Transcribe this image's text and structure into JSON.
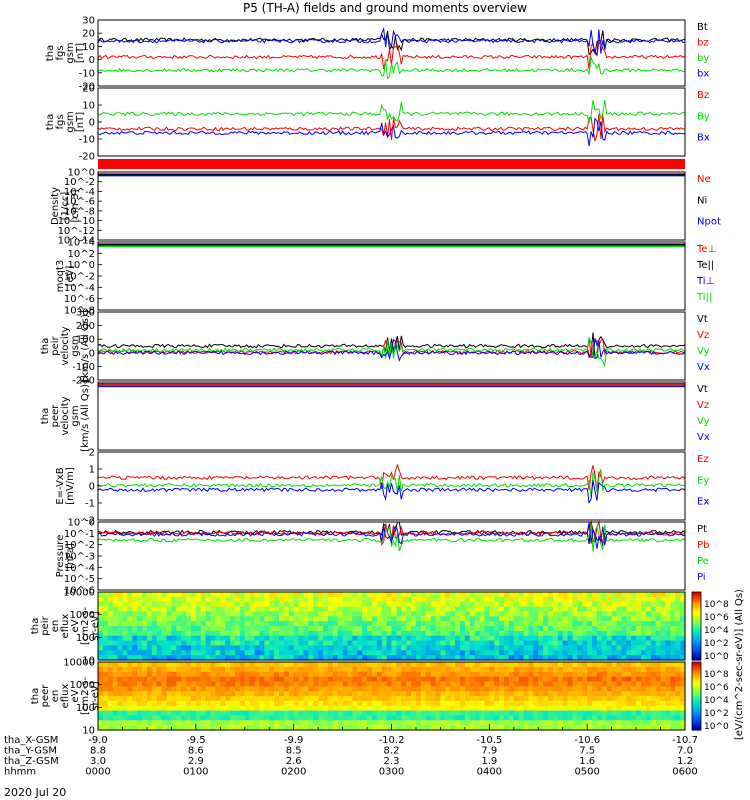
{
  "title": "P5 (TH-A) fields and ground moments overview",
  "colors": {
    "black": "#000000",
    "red": "#ff0000",
    "green": "#00e000",
    "blue": "#0000ff",
    "bar": "#ff0000"
  },
  "colorbar_label": "[eV/(cm^2-sec-sr-eV)] (All Qs)",
  "chart_data": [
    {
      "type": "line",
      "id": "fgs",
      "ylabel": [
        "tha",
        "fgs",
        "gsm",
        "[nT]"
      ],
      "ylim": [
        -20,
        30
      ],
      "ticks": [
        "30",
        "20",
        "10",
        "0",
        "-10",
        "-20"
      ],
      "series": [
        {
          "name": "Bt",
          "color": "black",
          "level": 15
        },
        {
          "name": "bz",
          "color": "red",
          "level": 2
        },
        {
          "name": "by",
          "color": "green",
          "level": -8
        },
        {
          "name": "bx",
          "color": "blue",
          "level": 14
        }
      ]
    },
    {
      "type": "line",
      "id": "fgs_dsl",
      "ylabel": [
        "tha",
        "fgs",
        "gsm",
        "[nT]"
      ],
      "ylim": [
        -25,
        25
      ],
      "ticks": [
        "20",
        "10",
        "0",
        "-10",
        "-20"
      ],
      "series": [
        {
          "name": "Bz",
          "color": "red",
          "level": -5
        },
        {
          "name": "By",
          "color": "green",
          "level": 6
        },
        {
          "name": "Bx",
          "color": "blue",
          "level": -8
        }
      ]
    },
    {
      "type": "line",
      "id": "density",
      "ylabel": [
        "Density",
        "[1/cc]",
        "[cm-3]"
      ],
      "ylim": [
        -14,
        2
      ],
      "ticks": [
        "10^0",
        "10^-2",
        "10^-4",
        "10^-6",
        "10^-8",
        "10^-10",
        "10^-12",
        "10^-14"
      ],
      "series": [
        {
          "name": "Ne",
          "color": "red"
        },
        {
          "name": "Ni",
          "color": "black"
        },
        {
          "name": "Npot",
          "color": "blue"
        }
      ]
    },
    {
      "type": "line",
      "id": "temp",
      "ylabel": [
        "moqt3",
        "[eV]"
      ],
      "ylim": [
        -8,
        4
      ],
      "ticks": [
        "10^4",
        "10^2",
        "10^0",
        "10^-2",
        "10^-4",
        "10^-6",
        "10^-8"
      ],
      "series": [
        {
          "name": "Te⊥",
          "color": "red"
        },
        {
          "name": "Te||",
          "color": "black"
        },
        {
          "name": "Ti⊥",
          "color": "blue"
        },
        {
          "name": "Ti||",
          "color": "green"
        }
      ]
    },
    {
      "type": "line",
      "id": "peir_vel",
      "ylabel": [
        "tha",
        "peir",
        "velocity",
        "gsm",
        "[km/s (All Qs)]"
      ],
      "ylim": [
        -200,
        300
      ],
      "ticks": [
        "300",
        "200",
        "100",
        "0",
        "-100",
        "-200"
      ],
      "series": [
        {
          "name": "Vt",
          "color": "black",
          "level": 50
        },
        {
          "name": "Vz",
          "color": "red",
          "level": 5
        },
        {
          "name": "Vy",
          "color": "green",
          "level": 20
        },
        {
          "name": "Vx",
          "color": "blue",
          "level": 0
        }
      ]
    },
    {
      "type": "line",
      "id": "peer_vel",
      "ylabel": [
        "tha",
        "peer",
        "velocity",
        "gsm",
        "[km/s (All Qs)]"
      ],
      "ylim": [
        0,
        1
      ],
      "ticks": [],
      "series": [
        {
          "name": "Vt",
          "color": "black"
        },
        {
          "name": "Vz",
          "color": "red"
        },
        {
          "name": "Vy",
          "color": "green"
        },
        {
          "name": "Vx",
          "color": "blue"
        }
      ]
    },
    {
      "type": "line",
      "id": "exb",
      "ylabel": [
        "E=-VxB",
        "[mV/m]"
      ],
      "ylim": [
        -2,
        2.5
      ],
      "ticks": [
        "2",
        "1",
        "0",
        "-1",
        "-2"
      ],
      "series": [
        {
          "name": "Ez",
          "color": "red",
          "level": 0.8
        },
        {
          "name": "Ey",
          "color": "green",
          "level": 0.3
        },
        {
          "name": "Ex",
          "color": "blue",
          "level": 0
        }
      ]
    },
    {
      "type": "line",
      "id": "pressure",
      "ylabel": [
        "Pressure",
        "[nPa]"
      ],
      "ylim": [
        -6,
        0
      ],
      "ticks": [
        "10^0",
        "10^-1",
        "10^-2",
        "10^-3",
        "10^-4",
        "10^-5",
        "10^-6"
      ],
      "series": [
        {
          "name": "Pt",
          "color": "black",
          "level": -0.9
        },
        {
          "name": "Pb",
          "color": "red",
          "level": -1
        },
        {
          "name": "Pe",
          "color": "green",
          "level": -1.6
        },
        {
          "name": "Pi",
          "color": "blue",
          "level": -1.1
        }
      ]
    },
    {
      "type": "heatmap",
      "id": "peir_eflux",
      "ylabel": [
        "tha",
        "peir",
        "en",
        "eflux",
        "eV",
        "[cm2-s-",
        "sr-eV]"
      ],
      "ticks": [
        "10000",
        "1000",
        "100",
        "10"
      ],
      "colorbar_ticks": [
        "10^8",
        "10^6",
        "10^4",
        "10^2",
        "10^0"
      ]
    },
    {
      "type": "heatmap",
      "id": "peer_eflux",
      "ylabel": [
        "tha",
        "peer",
        "en",
        "eflux",
        "eV",
        "[cm2-s-",
        "sr-eV]"
      ],
      "ticks": [
        "10000",
        "1000",
        "100",
        "10"
      ],
      "colorbar_ticks": [
        "10^8",
        "10^6",
        "10^4",
        "10^2",
        "10^0"
      ]
    }
  ],
  "xaxis": {
    "rows": [
      {
        "label": "tha_X-GSM",
        "values": [
          "-9.0",
          "-9.5",
          "-9.9",
          "-10.2",
          "-10.5",
          "-10.6",
          "-10.7"
        ]
      },
      {
        "label": "tha_Y-GSM",
        "values": [
          "8.8",
          "8.6",
          "8.5",
          "8.2",
          "7.9",
          "7.5",
          "7.0"
        ]
      },
      {
        "label": "tha_Z-GSM",
        "values": [
          "3.0",
          "2.9",
          "2.6",
          "2.3",
          "1.9",
          "1.6",
          "1.2"
        ]
      },
      {
        "label": "hhmm",
        "values": [
          "0000",
          "0100",
          "0200",
          "0300",
          "0400",
          "0500",
          "0600"
        ]
      }
    ],
    "date": "2020 Jul 20"
  }
}
